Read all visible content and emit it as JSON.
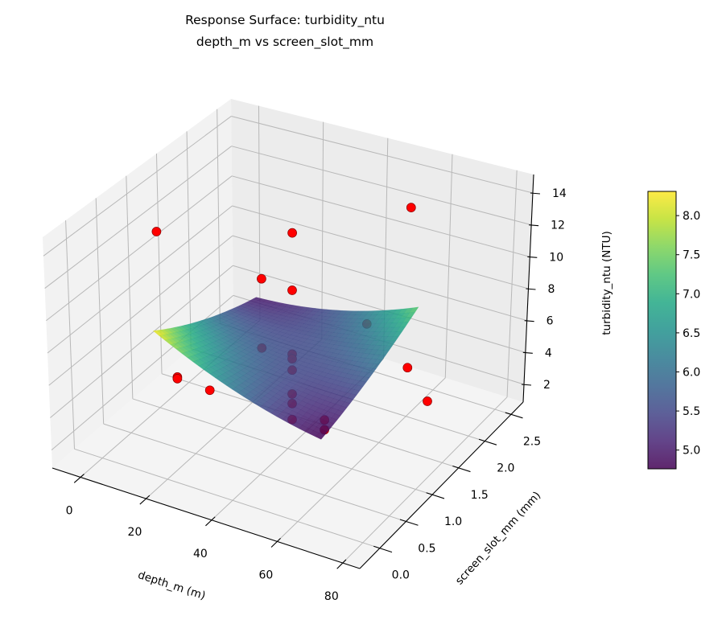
{
  "figure": {
    "title_line1": "Response Surface: turbidity_ntu",
    "title_line2": "depth_m vs screen_slot_mm"
  },
  "chart_data": {
    "type": "surface",
    "projection": "3d",
    "title": [
      "Response Surface: turbidity_ntu",
      "depth_m vs screen_slot_mm"
    ],
    "xlabel": "depth_m (m)",
    "ylabel": "screen_slot_mm (mm)",
    "zlabel": "turbidity_ntu (NTU)",
    "xlim": [
      -8.6,
      85.2
    ],
    "ylim": [
      -0.38,
      2.73
    ],
    "zlim": [
      0.89,
      15.16
    ],
    "xticks": [
      0,
      20,
      40,
      60,
      80
    ],
    "xtick_labels": [
      "0",
      "20",
      "40",
      "60",
      "80"
    ],
    "yticks": [
      0,
      0.5,
      1.0,
      1.5,
      2.0,
      2.5
    ],
    "ytick_labels": [
      "0.0",
      "0.5",
      "1.0",
      "1.5",
      "2.0",
      "2.5"
    ],
    "zticks": [
      2,
      4,
      6,
      8,
      10,
      12,
      14
    ],
    "ztick_labels": [
      "2",
      "4",
      "6",
      "8",
      "10",
      "12",
      "14"
    ],
    "grid": true,
    "colormap": "viridis",
    "surface_alpha": 0.85,
    "surface": {
      "model": "z = b0 + b1*x + b2*y + b11*x^2 + b22*y^2 + b12*x*y",
      "x_range": [
        10,
        61
      ],
      "y_range": [
        0.37,
        2.13
      ],
      "coefficients": {
        "b0": 10.7215,
        "b1": -0.14873,
        "b2": -3.5121,
        "b11": 0.00076894,
        "b22": 0.3874,
        "b12": 0.066288
      }
    },
    "colorbar": {
      "clim": [
        4.76,
        8.31
      ],
      "ticks": [
        5.0,
        5.5,
        6.0,
        6.5,
        7.0,
        7.5,
        8.0
      ],
      "tick_labels": [
        "5.0",
        "5.5",
        "6.0",
        "6.5",
        "7.0",
        "7.5",
        "8.0"
      ],
      "placement": "right"
    },
    "scatter": {
      "color": "#ff0000",
      "edge_color": "#8b0000",
      "points": [
        {
          "x": 11.7,
          "y": 0.37,
          "z": 14.6
        },
        {
          "x": 37,
          "y": 1.25,
          "z": 13.4
        },
        {
          "x": 37,
          "y": 1.25,
          "z": 9.8
        },
        {
          "x": 37,
          "y": 1.25,
          "z": 5.8
        },
        {
          "x": 37,
          "y": 1.25,
          "z": 5.5
        },
        {
          "x": 37,
          "y": 1.25,
          "z": 4.8
        },
        {
          "x": 37,
          "y": 1.25,
          "z": 3.3
        },
        {
          "x": 37,
          "y": 1.25,
          "z": 2.7
        },
        {
          "x": 37,
          "y": 1.25,
          "z": 1.7
        },
        {
          "x": 11.7,
          "y": 2.13,
          "z": 6.3
        },
        {
          "x": 11.7,
          "y": 2.13,
          "z": 1.8
        },
        {
          "x": 58,
          "y": 2.13,
          "z": 13.5
        },
        {
          "x": 58,
          "y": 2.13,
          "z": 3.4
        },
        {
          "x": 62,
          "y": 0.37,
          "z": 6.0
        },
        {
          "x": 62,
          "y": 0.37,
          "z": 5.4
        },
        {
          "x": 1,
          "y": 1.25,
          "z": 2.1
        },
        {
          "x": 1,
          "y": 1.25,
          "z": 2.0
        },
        {
          "x": 79,
          "y": 1.25,
          "z": 5.4
        },
        {
          "x": 33.5,
          "y": 0,
          "z": 7.2
        },
        {
          "x": 38.5,
          "y": 2.5,
          "z": 3.8
        }
      ]
    }
  }
}
